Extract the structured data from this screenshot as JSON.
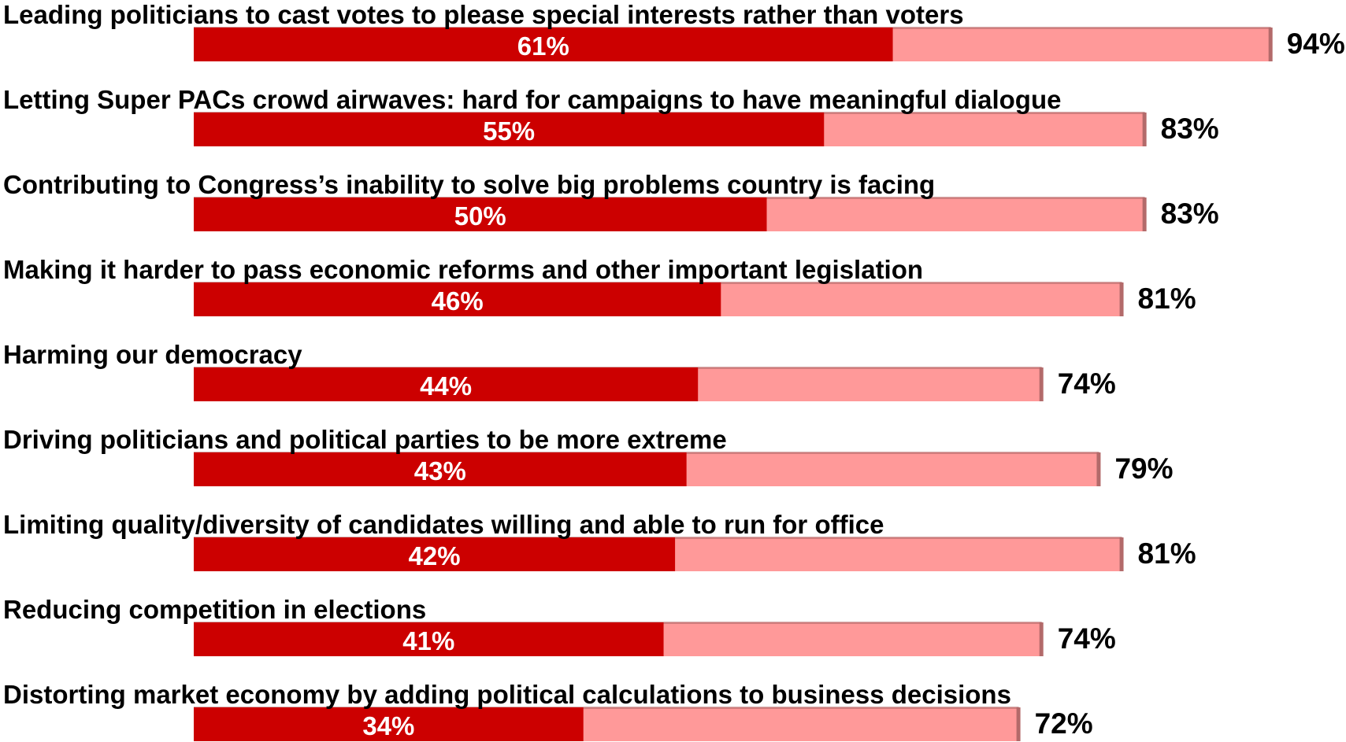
{
  "chart_data": {
    "type": "bar",
    "orientation": "horizontal",
    "stacked": false,
    "categories": [
      "Leading politicians to cast votes to please special interests rather than voters",
      "Letting Super PACs crowd airwaves: hard for campaigns to have meaningful dialogue",
      "Contributing to Congress’s inability to solve big problems country is facing",
      "Making it harder to pass economic reforms and other important legislation",
      "Harming our democracy",
      "Driving politicians and political parties to be more extreme",
      "Limiting quality/diversity of candidates willing and able to run for office",
      "Reducing competition in elections",
      "Distorting market economy by adding political calculations to business decisions"
    ],
    "series": [
      {
        "values": [
          94,
          83,
          83,
          81,
          74,
          79,
          81,
          74,
          72
        ],
        "color": "#ff9999",
        "labels": [
          "94%",
          "83%",
          "83%",
          "81%",
          "74%",
          "79%",
          "81%",
          "74%",
          "72%"
        ]
      },
      {
        "values": [
          61,
          55,
          50,
          46,
          44,
          43,
          42,
          41,
          34
        ],
        "color": "#cc0000",
        "labels": [
          "61%",
          "55%",
          "50%",
          "46%",
          "44%",
          "43%",
          "42%",
          "41%",
          "34%"
        ]
      }
    ],
    "xlim": [
      0,
      100
    ],
    "grid": false,
    "legend": "none"
  }
}
